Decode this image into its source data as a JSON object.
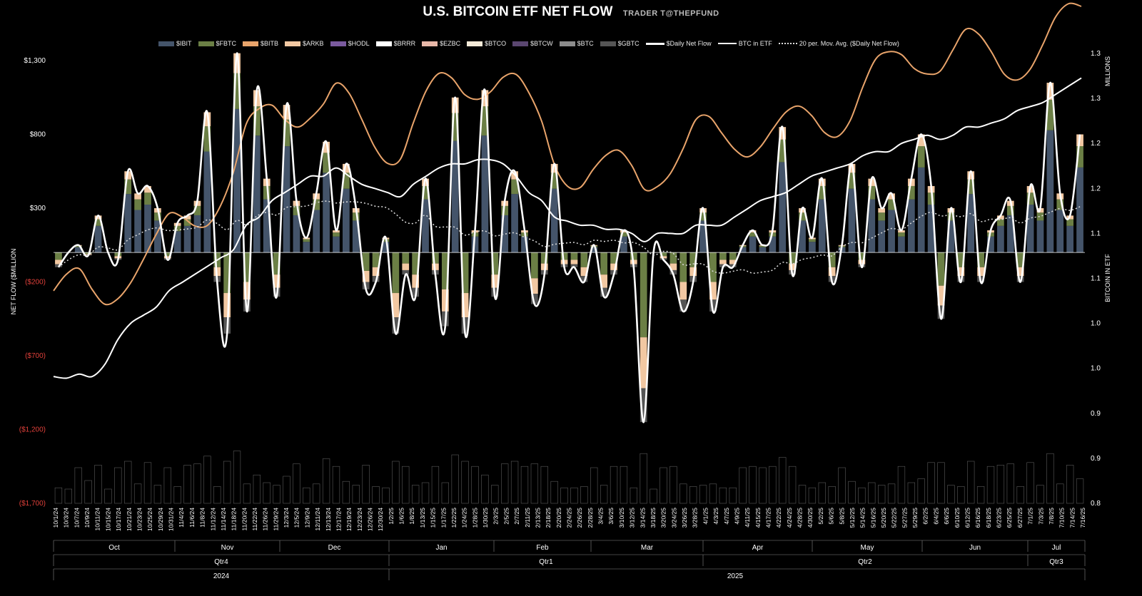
{
  "header": {
    "title": "U.S. BITCOIN ETF NET FLOW",
    "subtitle": "TRADER T@THEPFUND"
  },
  "legend": [
    {
      "label": "$IBIT",
      "color": "#44546a",
      "kind": "bar"
    },
    {
      "label": "$FBTC",
      "color": "#6b7f45",
      "kind": "bar"
    },
    {
      "label": "$BITB",
      "color": "#e9a46b",
      "kind": "bar"
    },
    {
      "label": "$ARKB",
      "color": "#f2c8a2",
      "kind": "bar"
    },
    {
      "label": "$HODL",
      "color": "#7a5a9e",
      "kind": "bar"
    },
    {
      "label": "$BRRR",
      "color": "#ffffff",
      "kind": "bar"
    },
    {
      "label": "$EZBC",
      "color": "#e8b8a8",
      "kind": "bar"
    },
    {
      "label": "$BTCO",
      "color": "#f4ead8",
      "kind": "bar"
    },
    {
      "label": "$BTCW",
      "color": "#5a4670",
      "kind": "bar"
    },
    {
      "label": "$BTC",
      "color": "#8c8c8c",
      "kind": "bar"
    },
    {
      "label": "$GBTC",
      "color": "#555555",
      "kind": "bar"
    },
    {
      "label": "$Daily Net Flow",
      "color": "#ffffff",
      "kind": "line"
    },
    {
      "label": "BTC in ETF",
      "color": "#ffffff",
      "kind": "thinline"
    },
    {
      "label": "20 per. Mov. Avg. ($Daily Net Flow)",
      "color": "#dddddd",
      "kind": "dots"
    }
  ],
  "chart_data": {
    "type": "bar",
    "ylabel": "NET FLOW ($MILLION",
    "y2label": "BITCOIN IN ETF",
    "y2unit": "MILLIONS",
    "ylim": [
      -1700,
      1300
    ],
    "y_ticks": [
      {
        "value": 1300,
        "label": "$1,300",
        "color": "#ffffff"
      },
      {
        "value": 800,
        "label": "$800",
        "color": "#ffffff"
      },
      {
        "value": 300,
        "label": "$300",
        "color": "#ffffff"
      },
      {
        "value": -200,
        "label": "($200)",
        "color": "#e0403a"
      },
      {
        "value": -700,
        "label": "($700)",
        "color": "#e0403a"
      },
      {
        "value": -1200,
        "label": "($1,200)",
        "color": "#e0403a"
      },
      {
        "value": -1700,
        "label": "($1,700)",
        "color": "#e0403a"
      }
    ],
    "y2_ticks": [
      "1.3",
      "1.3",
      "1.2",
      "1.2",
      "1.1",
      "1.1",
      "1.0",
      "1.0",
      "0.9",
      "0.9",
      "0.8"
    ],
    "x_date_labels": [
      "10/1/24",
      "10/3/24",
      "10/7/24",
      "10/9/24",
      "10/11/24",
      "10/15/24",
      "10/17/24",
      "10/21/24",
      "10/23/24",
      "10/25/24",
      "10/29/24",
      "10/31/24",
      "11/4/24",
      "11/6/24",
      "11/8/24",
      "11/12/24",
      "11/14/24",
      "11/18/24",
      "11/20/24",
      "11/22/24",
      "11/26/24",
      "11/29/24",
      "12/3/24",
      "12/5/24",
      "12/9/24",
      "12/11/24",
      "12/13/24",
      "12/17/24",
      "12/19/24",
      "12/23/24",
      "12/26/24",
      "12/30/24",
      "1/2/25",
      "1/6/25",
      "1/8/25",
      "1/13/25",
      "1/15/25",
      "1/17/25",
      "1/22/25",
      "1/24/25",
      "1/28/25",
      "1/30/25",
      "2/3/25",
      "2/5/25",
      "2/7/25",
      "2/11/25",
      "2/13/25",
      "2/18/25",
      "2/20/25",
      "2/24/25",
      "2/26/25",
      "2/28/25",
      "3/4/25",
      "3/6/25",
      "3/10/25",
      "3/12/25",
      "3/14/25",
      "3/18/25",
      "3/20/25",
      "3/24/25",
      "3/26/25",
      "3/28/25",
      "4/1/25",
      "4/3/25",
      "4/7/25",
      "4/9/25",
      "4/11/25",
      "4/15/25",
      "4/17/25",
      "4/22/25",
      "4/24/25",
      "4/28/25",
      "4/30/25",
      "5/2/25",
      "5/6/25",
      "5/8/25",
      "5/12/25",
      "5/14/25",
      "5/16/25",
      "5/20/25",
      "5/22/25",
      "5/27/25",
      "5/29/25",
      "6/2/25",
      "6/4/25",
      "6/6/25",
      "6/10/25",
      "6/12/25",
      "6/16/25",
      "6/18/25",
      "6/23/25",
      "6/25/25",
      "6/27/25",
      "7/1/25",
      "7/3/25",
      "7/8/25",
      "7/10/25",
      "7/14/25",
      "7/16/25"
    ],
    "months": [
      "Oct",
      "Nov",
      "Dec",
      "Jan",
      "Feb",
      "Mar",
      "Apr",
      "May",
      "Jun",
      "Jul"
    ],
    "quarters": [
      "Qtr4",
      "Qtr1",
      "Qtr2",
      "Qtr3"
    ],
    "years": [
      "2024",
      "2025"
    ],
    "series": [
      {
        "name": "$Daily Net Flow",
        "values": [
          -100,
          0,
          50,
          -20,
          250,
          0,
          -50,
          550,
          400,
          450,
          300,
          -50,
          200,
          250,
          350,
          950,
          -200,
          -550,
          1350,
          -400,
          1100,
          500,
          -300,
          1000,
          350,
          100,
          400,
          750,
          150,
          600,
          300,
          -250,
          -200,
          100,
          -550,
          -150,
          -300,
          500,
          -150,
          -500,
          1050,
          -550,
          150,
          1100,
          -300,
          350,
          550,
          150,
          -350,
          -150,
          600,
          -100,
          -100,
          -200,
          50,
          -300,
          -150,
          150,
          -100,
          -1150,
          0,
          -50,
          -150,
          -400,
          -200,
          300,
          -400,
          -100,
          -100,
          50,
          150,
          50,
          150,
          850,
          -150,
          300,
          100,
          500,
          -200,
          50,
          600,
          -100,
          500,
          300,
          400,
          150,
          500,
          800,
          450,
          -450,
          300,
          -200,
          550,
          -200,
          150,
          250,
          350,
          -200,
          450,
          300,
          1150,
          400,
          250,
          800
        ],
        "color": "#ffffff"
      },
      {
        "name": "BTC in ETF",
        "values": [
          0.955,
          0.953,
          0.958,
          0.955,
          0.97,
          1.0,
          1.02,
          1.03,
          1.04,
          1.06,
          1.07,
          1.08,
          1.09,
          1.1,
          1.11,
          1.14,
          1.15,
          1.17,
          1.18,
          1.19,
          1.2,
          1.2,
          1.21,
          1.2,
          1.19,
          1.185,
          1.18,
          1.175,
          1.19,
          1.2,
          1.21,
          1.215,
          1.215,
          1.22,
          1.22,
          1.215,
          1.2,
          1.18,
          1.17,
          1.15,
          1.145,
          1.14,
          1.14,
          1.135,
          1.135,
          1.13,
          1.12,
          1.13,
          1.13,
          1.13,
          1.14,
          1.14,
          1.14,
          1.15,
          1.16,
          1.17,
          1.175,
          1.18,
          1.19,
          1.2,
          1.205,
          1.21,
          1.215,
          1.225,
          1.23,
          1.23,
          1.24,
          1.245,
          1.25,
          1.245,
          1.25,
          1.26,
          1.26,
          1.265,
          1.27,
          1.28,
          1.285,
          1.29,
          1.3,
          1.31,
          1.32
        ],
        "color": "#ffffff"
      }
    ],
    "grid": false
  }
}
